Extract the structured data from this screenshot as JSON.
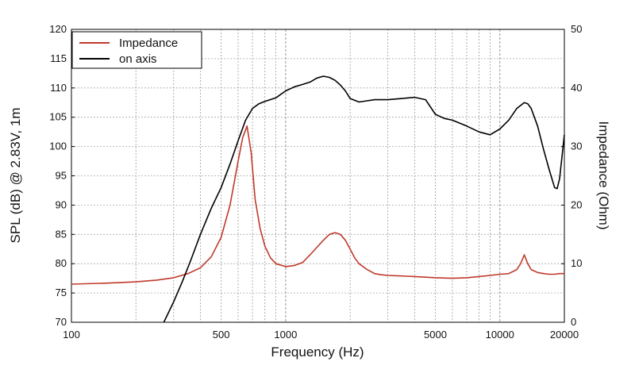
{
  "chart_data": {
    "type": "line",
    "xlabel": "Frequency (Hz)",
    "ylabel": "SPL (dB) @ 2.83V, 1m",
    "y2label": "Impedance (Ohm)",
    "xscale": "log",
    "xlim": [
      100,
      20000
    ],
    "ylim": [
      70,
      120
    ],
    "y2lim": [
      0,
      50
    ],
    "grid": true,
    "legend_position": "top-left",
    "x_tick_labels": [
      "100",
      "500",
      "1000",
      "5000",
      "10000",
      "20000"
    ],
    "x_ticks": [
      100,
      500,
      1000,
      5000,
      10000,
      20000
    ],
    "y_ticks": [
      70,
      75,
      80,
      85,
      90,
      95,
      100,
      105,
      110,
      115,
      120
    ],
    "y2_ticks": [
      0,
      10,
      20,
      30,
      40,
      50
    ],
    "series": [
      {
        "name": "Impedance",
        "axis": "right",
        "color": "#c0392b",
        "x": [
          100,
          150,
          200,
          250,
          300,
          350,
          400,
          450,
          500,
          550,
          600,
          630,
          660,
          690,
          720,
          760,
          800,
          850,
          900,
          1000,
          1100,
          1200,
          1300,
          1400,
          1500,
          1600,
          1700,
          1800,
          1900,
          2000,
          2100,
          2200,
          2400,
          2600,
          2800,
          3000,
          3500,
          4000,
          4500,
          5000,
          6000,
          7000,
          8000,
          9000,
          10000,
          11000,
          12000,
          12500,
          13000,
          13500,
          14000,
          15000,
          16000,
          17000,
          18000,
          19000,
          20000
        ],
        "y": [
          6.5,
          6.7,
          6.9,
          7.2,
          7.6,
          8.3,
          9.3,
          11.2,
          14.5,
          20.0,
          27.5,
          31.5,
          33.5,
          29.0,
          21.0,
          16.0,
          13.0,
          11.0,
          10.0,
          9.5,
          9.7,
          10.2,
          11.5,
          12.8,
          14.0,
          15.0,
          15.3,
          15.0,
          14.0,
          12.5,
          11.0,
          10.0,
          9.0,
          8.3,
          8.1,
          8.0,
          7.9,
          7.8,
          7.7,
          7.6,
          7.5,
          7.6,
          7.8,
          8.0,
          8.2,
          8.3,
          9.0,
          10.0,
          11.5,
          10.0,
          9.0,
          8.5,
          8.3,
          8.2,
          8.2,
          8.3,
          8.3
        ]
      },
      {
        "name": "on axis",
        "axis": "left",
        "color": "#000000",
        "x": [
          270,
          300,
          330,
          360,
          400,
          450,
          500,
          550,
          600,
          650,
          700,
          750,
          800,
          900,
          1000,
          1100,
          1200,
          1300,
          1400,
          1500,
          1600,
          1700,
          1800,
          1900,
          2000,
          2200,
          2400,
          2600,
          2800,
          3000,
          3500,
          4000,
          4500,
          5000,
          5500,
          6000,
          7000,
          8000,
          9000,
          10000,
          11000,
          12000,
          13000,
          13500,
          14000,
          15000,
          16000,
          17000,
          18000,
          18500,
          19000,
          20000
        ],
        "y": [
          70.0,
          73.5,
          77.0,
          80.5,
          85.0,
          89.5,
          93.0,
          97.0,
          101.0,
          104.5,
          106.5,
          107.3,
          107.7,
          108.3,
          109.5,
          110.2,
          110.6,
          111.0,
          111.7,
          112.0,
          111.8,
          111.3,
          110.5,
          109.5,
          108.2,
          107.6,
          107.8,
          108.0,
          108.0,
          108.0,
          108.2,
          108.4,
          108.0,
          105.5,
          104.8,
          104.5,
          103.5,
          102.5,
          102.0,
          103.0,
          104.5,
          106.5,
          107.5,
          107.3,
          106.5,
          103.5,
          99.5,
          96.0,
          93.0,
          92.8,
          94.5,
          102.0
        ]
      }
    ]
  }
}
